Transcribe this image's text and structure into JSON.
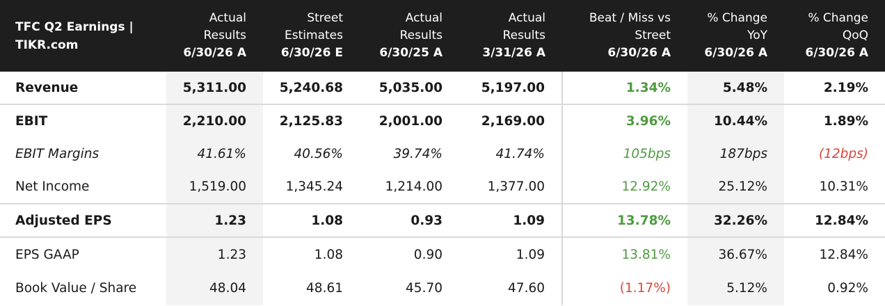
{
  "header": {
    "title_line1": "TFC Q2 Earnings |",
    "title_line2": "TIKR.com",
    "columns": [
      {
        "line1": "Actual",
        "line2": "Results",
        "line3": "6/30/26 A"
      },
      {
        "line1": "Street",
        "line2": "Estimates",
        "line3": "6/30/26 E"
      },
      {
        "line1": "Actual",
        "line2": "Results",
        "line3": "6/30/25 A"
      },
      {
        "line1": "Actual",
        "line2": "Results",
        "line3": "3/31/26 A"
      },
      {
        "line1": "Beat / Miss vs",
        "line2": "Street",
        "line3": "6/30/26 A"
      },
      {
        "line1": "% Change",
        "line2": "YoY",
        "line3": "6/30/26 A"
      },
      {
        "line1": "% Change",
        "line2": "QoQ",
        "line3": "6/30/26 A"
      }
    ]
  },
  "rows": [
    {
      "label": "Revenue",
      "cells": [
        "5,311.00",
        "5,240.68",
        "5,035.00",
        "5,197.00",
        "1.34%",
        "5.48%",
        "2.19%"
      ]
    },
    {
      "label": "EBIT",
      "cells": [
        "2,210.00",
        "2,125.83",
        "2,001.00",
        "2,169.00",
        "3.96%",
        "10.44%",
        "1.89%"
      ]
    },
    {
      "label": "EBIT Margins",
      "cells": [
        "41.61%",
        "40.56%",
        "39.74%",
        "41.74%",
        "105bps",
        "187bps",
        "(12bps)"
      ]
    },
    {
      "label": "Net Income",
      "cells": [
        "1,519.00",
        "1,345.24",
        "1,214.00",
        "1,377.00",
        "12.92%",
        "25.12%",
        "10.31%"
      ]
    },
    {
      "label": "Adjusted EPS",
      "cells": [
        "1.23",
        "1.08",
        "0.93",
        "1.09",
        "13.78%",
        "32.26%",
        "12.84%"
      ]
    },
    {
      "label": "EPS GAAP",
      "cells": [
        "1.23",
        "1.08",
        "0.90",
        "1.09",
        "13.81%",
        "36.67%",
        "12.84%"
      ]
    },
    {
      "label": "Book Value / Share",
      "cells": [
        "48.04",
        "48.61",
        "45.70",
        "47.60",
        "(1.17%)",
        "5.12%",
        "0.92%"
      ]
    }
  ],
  "colors": {
    "positive": "#4f9a42",
    "negative": "#d9453a",
    "header_bg": "#1e1e1e",
    "shade": "#f3f3f3"
  }
}
